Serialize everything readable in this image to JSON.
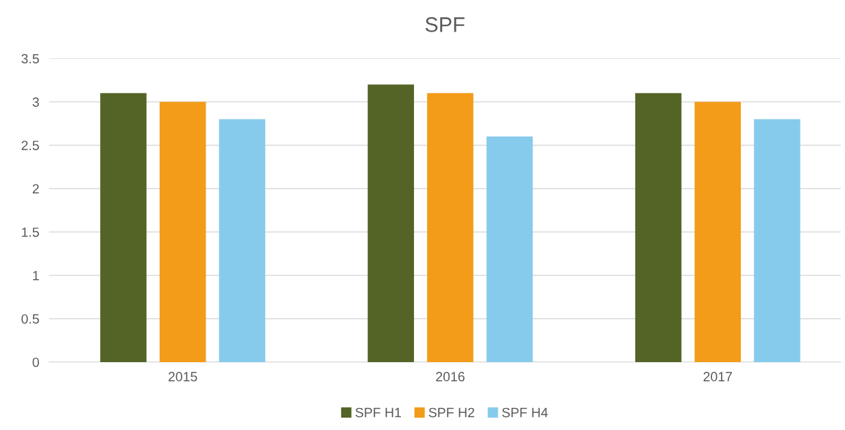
{
  "chart_data": {
    "type": "bar",
    "title": "SPF",
    "categories": [
      "2015",
      "2016",
      "2017"
    ],
    "series": [
      {
        "name": "SPF H1",
        "color": "#546427",
        "values": [
          3.1,
          3.2,
          3.1
        ]
      },
      {
        "name": "SPF H2",
        "color": "#f39c19",
        "values": [
          3.0,
          3.1,
          3.0
        ]
      },
      {
        "name": "SPF H4",
        "color": "#87cbec",
        "values": [
          2.8,
          2.6,
          2.8
        ]
      }
    ],
    "ylim": [
      0,
      3.5
    ],
    "yticks": [
      0,
      {
        "value": 0.5,
        "label": "0.5"
      },
      1,
      {
        "value": 1.5,
        "label": "1.5"
      },
      2,
      {
        "value": 2.5,
        "label": "2.5"
      },
      3,
      {
        "value": 3.5,
        "label": "3.5"
      }
    ],
    "grid": "y",
    "legend": "bottom"
  }
}
